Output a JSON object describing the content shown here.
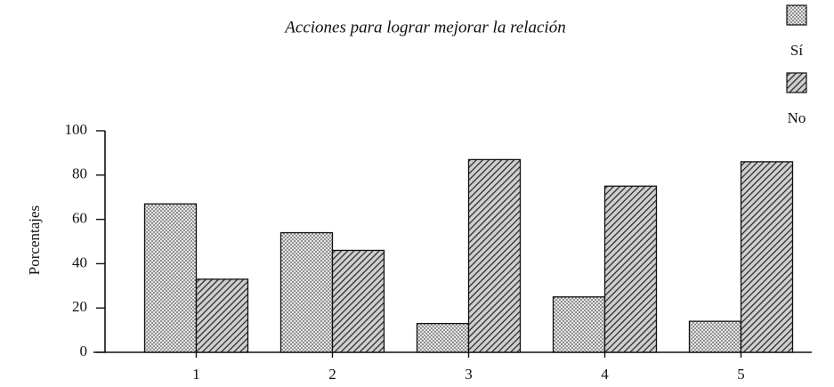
{
  "chart_data": {
    "type": "bar",
    "title": "Acciones para lograr mejorar la relación",
    "y_label": "Porcentajes",
    "categories": [
      "1",
      "2",
      "3",
      "4",
      "5"
    ],
    "series": [
      {
        "name": "Sí",
        "color": "#d8d8d8",
        "pattern": "dots",
        "values": [
          67,
          54,
          13,
          25,
          14
        ]
      },
      {
        "name": "No",
        "color": "#9a9a9a",
        "pattern": "hatch",
        "values": [
          33,
          46,
          87,
          75,
          86
        ]
      }
    ],
    "ylim": [
      0,
      100
    ],
    "yticks": [
      0,
      20,
      40,
      60,
      80,
      100
    ],
    "grid": false,
    "legend": "upper right"
  }
}
